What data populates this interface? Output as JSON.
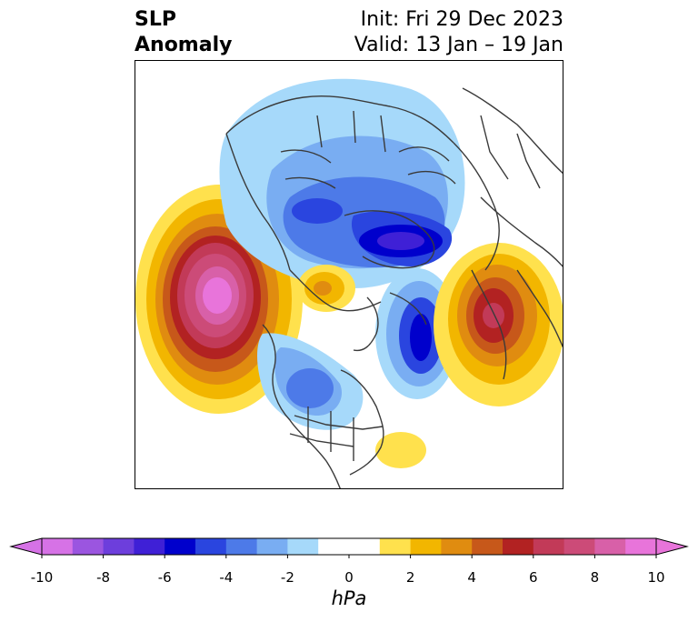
{
  "title": {
    "left_line1": "SLP",
    "left_line2": "Anomaly",
    "right_line1": "Init: Fri 29 Dec 2023",
    "right_line2": "Valid: 13 Jan – 19 Jan"
  },
  "colorbar": {
    "label": "hPa",
    "ticks": [
      "-10",
      "-8",
      "-6",
      "-4",
      "-2",
      "0",
      "2",
      "4",
      "6",
      "8",
      "10"
    ],
    "colors": [
      "#d672e6",
      "#9b55e0",
      "#6d3edc",
      "#3f20d6",
      "#0000cc",
      "#2a45df",
      "#4d7ae8",
      "#79adf2",
      "#a6d9fa",
      "#ffffff",
      "#ffffff",
      "#ffe14d",
      "#f2b600",
      "#e08c10",
      "#c7581a",
      "#b22222",
      "#c23a58",
      "#cc4b78",
      "#d860a8",
      "#e874da"
    ],
    "min_color": "#d672e6",
    "max_color": "#e874da"
  },
  "map": {
    "projection": "north polar stereographic",
    "features": [
      "coastlines",
      "country borders",
      "US state borders"
    ]
  }
}
